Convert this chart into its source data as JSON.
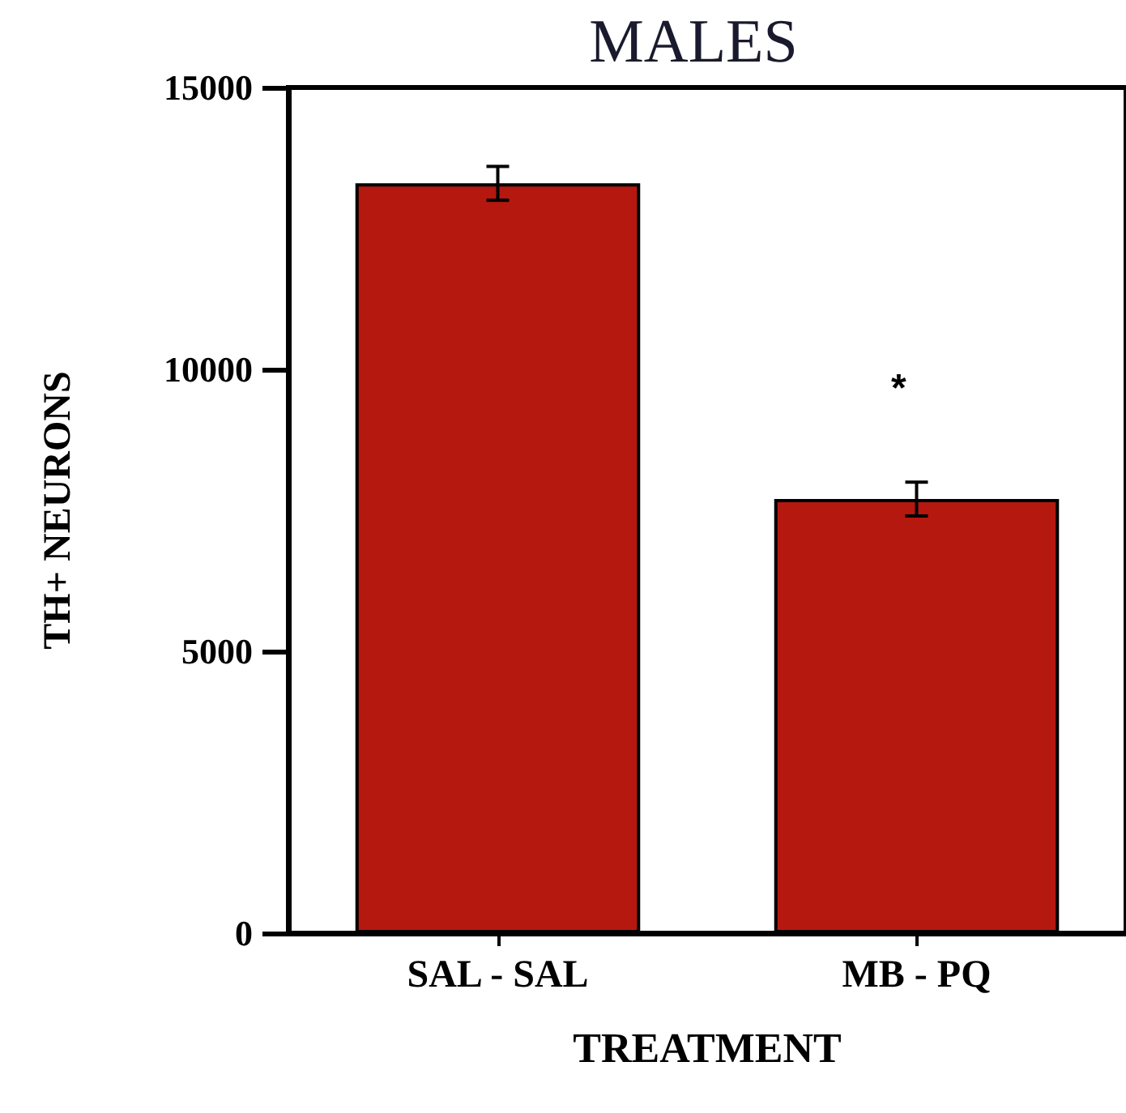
{
  "chart_data": {
    "type": "bar",
    "title": "MALES",
    "xlabel": "TREATMENT",
    "ylabel": "TH+ NEURONS",
    "categories": [
      "SAL - SAL",
      "MB - PQ"
    ],
    "values": [
      13300,
      7700
    ],
    "errors": [
      300,
      300
    ],
    "color": "#b5180f",
    "ylim": [
      0,
      15000
    ],
    "yticks": [
      0,
      5000,
      10000,
      15000
    ],
    "grid": false,
    "annotations": [
      "*"
    ]
  }
}
